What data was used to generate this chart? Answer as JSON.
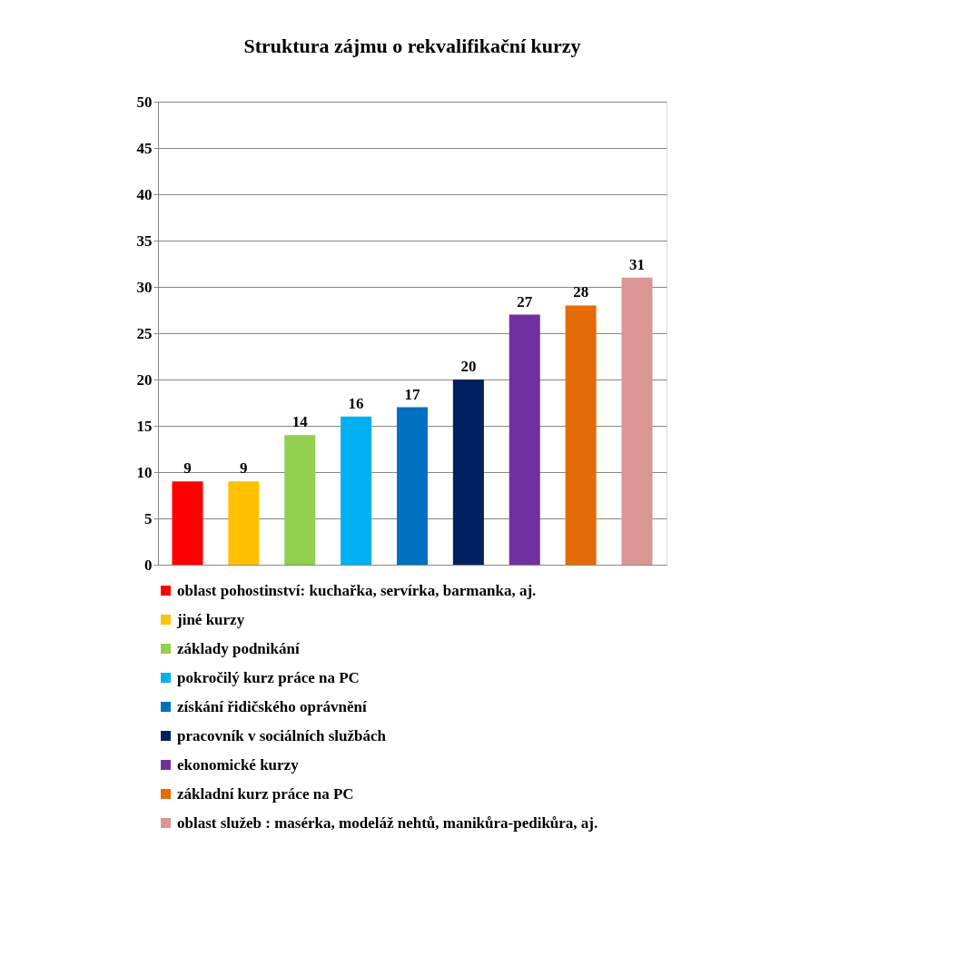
{
  "chart_data": {
    "type": "bar",
    "title": "Struktura zájmu o rekvalifikační kurzy",
    "categories": [
      null,
      null,
      null,
      null,
      null,
      null,
      null,
      null,
      null
    ],
    "series": [
      {
        "name": "oblast pohostinství: kuchařka, servírka, barmanka, aj.",
        "color": "#ff0000",
        "values": [
          9,
          null,
          null,
          null,
          null,
          null,
          null,
          null,
          null
        ]
      },
      {
        "name": "jiné kurzy",
        "color": "#ffc000",
        "values": [
          null,
          9,
          null,
          null,
          null,
          null,
          null,
          null,
          null
        ]
      },
      {
        "name": "základy podnikání",
        "color": "#92d050",
        "values": [
          null,
          null,
          14,
          null,
          null,
          null,
          null,
          null,
          null
        ]
      },
      {
        "name": "pokročilý kurz práce na PC",
        "color": "#00b0f0",
        "values": [
          null,
          null,
          null,
          16,
          null,
          null,
          null,
          null,
          null
        ]
      },
      {
        "name": "získání řidičského oprávnění",
        "color": "#0070c0",
        "values": [
          null,
          null,
          null,
          null,
          17,
          null,
          null,
          null,
          null
        ]
      },
      {
        "name": "pracovník v sociálních službách",
        "color": "#002060",
        "values": [
          null,
          null,
          null,
          null,
          null,
          20,
          null,
          null,
          null
        ]
      },
      {
        "name": "ekonomické kurzy",
        "color": "#7030a0",
        "values": [
          null,
          null,
          null,
          null,
          null,
          null,
          27,
          null,
          null
        ]
      },
      {
        "name": "základní kurz práce na PC",
        "color": "#e36c09",
        "values": [
          null,
          null,
          null,
          null,
          null,
          null,
          null,
          28,
          null
        ]
      },
      {
        "name": "oblast služeb : masérka, modeláž nehtů, manikůra-pedikůra, aj.",
        "color": "#d99694",
        "values": [
          null,
          null,
          null,
          null,
          null,
          null,
          null,
          null,
          31
        ]
      }
    ],
    "ylim": [
      0,
      50
    ],
    "yticks": [
      0,
      5,
      10,
      15,
      20,
      25,
      30,
      35,
      40,
      45,
      50
    ],
    "grid": "y",
    "data_labels": true,
    "legend": "bottom"
  }
}
